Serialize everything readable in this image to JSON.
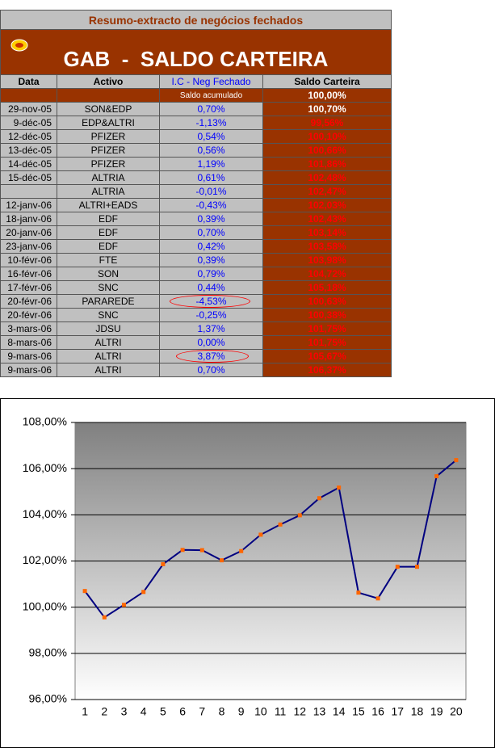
{
  "header": {
    "subtitle": "Resumo-extracto de negócios fechados",
    "title": "GAB  -  SALDO CARTEIRA"
  },
  "table": {
    "columns": [
      "Data",
      "Activo",
      "I.C - Neg Fechado",
      "Saldo Carteira"
    ],
    "start_label": "Saldo acumulado",
    "start_value": "100,00%",
    "rows": [
      [
        "29-nov-05",
        "SON&EDP",
        "0,70%",
        "100,70%"
      ],
      [
        "9-déc-05",
        "EDP&ALTRI",
        "-1,13%",
        "99,56%"
      ],
      [
        "12-déc-05",
        "PFIZER",
        "0,54%",
        "100,10%"
      ],
      [
        "13-déc-05",
        "PFIZER",
        "0,56%",
        "100,66%"
      ],
      [
        "14-déc-05",
        "PFIZER",
        "1,19%",
        "101,86%"
      ],
      [
        "15-déc-05",
        "ALTRIA",
        "0,61%",
        "102,48%"
      ],
      [
        null,
        "ALTRIA",
        "-0,01%",
        "102,47%"
      ],
      [
        "12-janv-06",
        "ALTRI+EADS",
        "-0,43%",
        "102,03%"
      ],
      [
        "18-janv-06",
        "EDF",
        "0,39%",
        "102,43%"
      ],
      [
        "20-janv-06",
        "EDF",
        "0,70%",
        "103,14%"
      ],
      [
        "23-janv-06",
        "EDF",
        "0,42%",
        "103,58%"
      ],
      [
        "10-févr-06",
        "FTE",
        "0,39%",
        "103,98%"
      ],
      [
        "16-févr-06",
        "SON",
        "0,79%",
        "104,72%"
      ],
      [
        "17-févr-06",
        "SNC",
        "0,44%",
        "105,18%"
      ],
      [
        "20-févr-06",
        "PARAREDE",
        "-4,53%",
        "100,63%"
      ],
      [
        "20-févr-06",
        "SNC",
        "-0,25%",
        "100,38%"
      ],
      [
        "3-mars-06",
        "JDSU",
        "1,37%",
        "101,75%"
      ],
      [
        "8-mars-06",
        "ALTRI",
        "0,00%",
        "101,75%"
      ],
      [
        "9-mars-06",
        "ALTRI",
        "3,87%",
        "105,67%"
      ],
      [
        "9-mars-06",
        "ALTRI",
        "0,70%",
        "106,37%"
      ]
    ]
  },
  "chart_data": {
    "type": "line",
    "categories": [
      1,
      2,
      3,
      4,
      5,
      6,
      7,
      8,
      9,
      10,
      11,
      12,
      13,
      14,
      15,
      16,
      17,
      18,
      19,
      20
    ],
    "values": [
      100.7,
      99.56,
      100.1,
      100.66,
      101.86,
      102.48,
      102.47,
      102.03,
      102.43,
      103.14,
      103.58,
      103.98,
      104.72,
      105.18,
      100.63,
      100.38,
      101.75,
      101.75,
      105.67,
      106.37
    ],
    "color": "#000080",
    "marker_color": "#ff6600",
    "ylim": [
      96,
      108
    ],
    "yticks": [
      {
        "value": 96,
        "label": "96,00%"
      },
      {
        "value": 98,
        "label": "98,00%"
      },
      {
        "value": 100,
        "label": "100,00%"
      },
      {
        "value": 102,
        "label": "102,00%"
      },
      {
        "value": 104,
        "label": "104,00%"
      },
      {
        "value": 106,
        "label": "106,00%"
      },
      {
        "value": 108,
        "label": "108,00%"
      }
    ],
    "grid": true
  }
}
